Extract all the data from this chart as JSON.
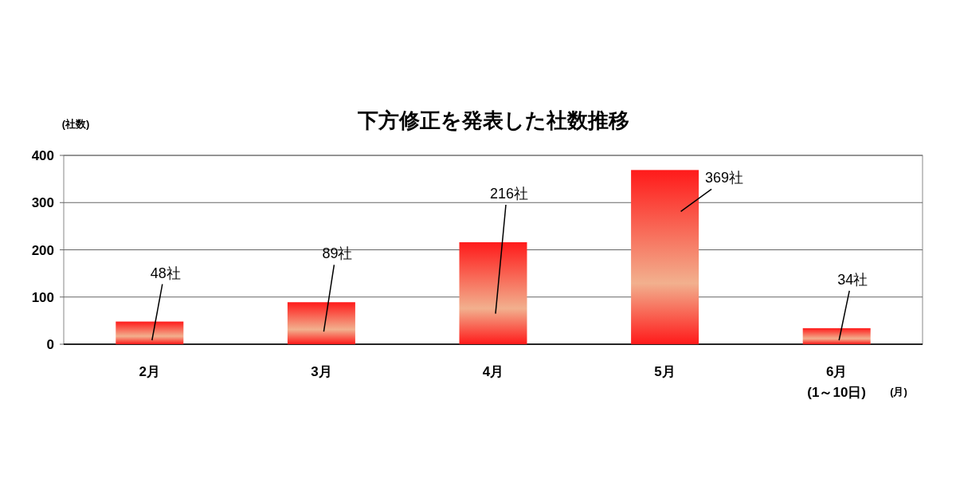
{
  "chart_data": {
    "type": "bar",
    "title": "下方修正を発表した社数推移",
    "ylabel": "(社数)",
    "xlabel": "(月)",
    "categories": [
      "2月",
      "3月",
      "4月",
      "5月",
      "6月\n(1～10日)"
    ],
    "values": [
      48,
      89,
      216,
      369,
      34
    ],
    "value_labels": [
      "48社",
      "89社",
      "216社",
      "369社",
      "34社"
    ],
    "color": "#ff1a1a",
    "ylim": [
      0,
      400
    ],
    "yticks": [
      0,
      100,
      200,
      300,
      400
    ],
    "grid": "y"
  }
}
